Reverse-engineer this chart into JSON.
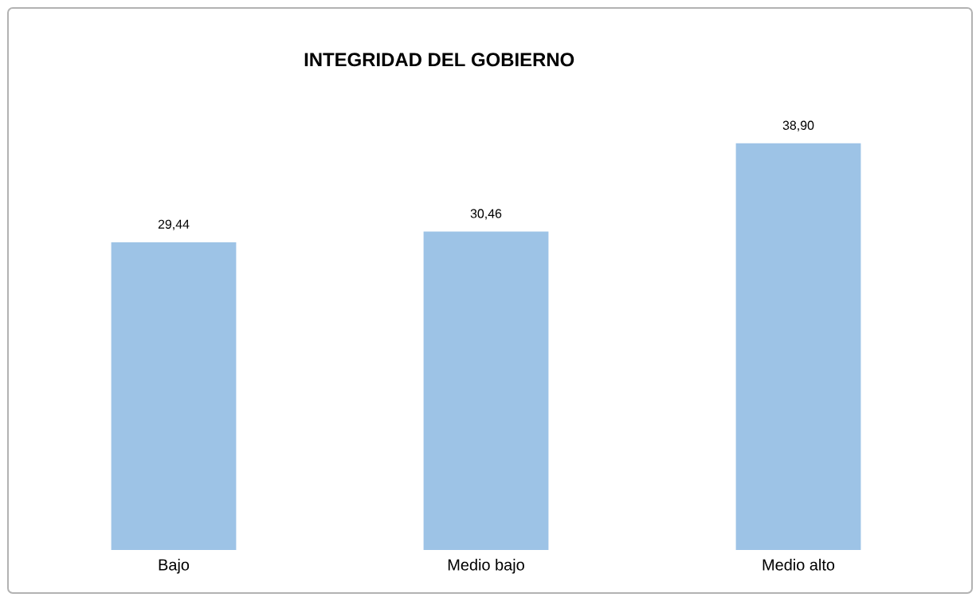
{
  "chart_data": {
    "type": "bar",
    "title": "INTEGRIDAD DEL GOBIERNO",
    "categories": [
      "Bajo",
      "Medio bajo",
      "Medio alto"
    ],
    "values": [
      29.44,
      30.46,
      38.9
    ],
    "value_labels": [
      "29,44",
      "30,46",
      "38,90"
    ],
    "color": "#9dc3e6"
  }
}
